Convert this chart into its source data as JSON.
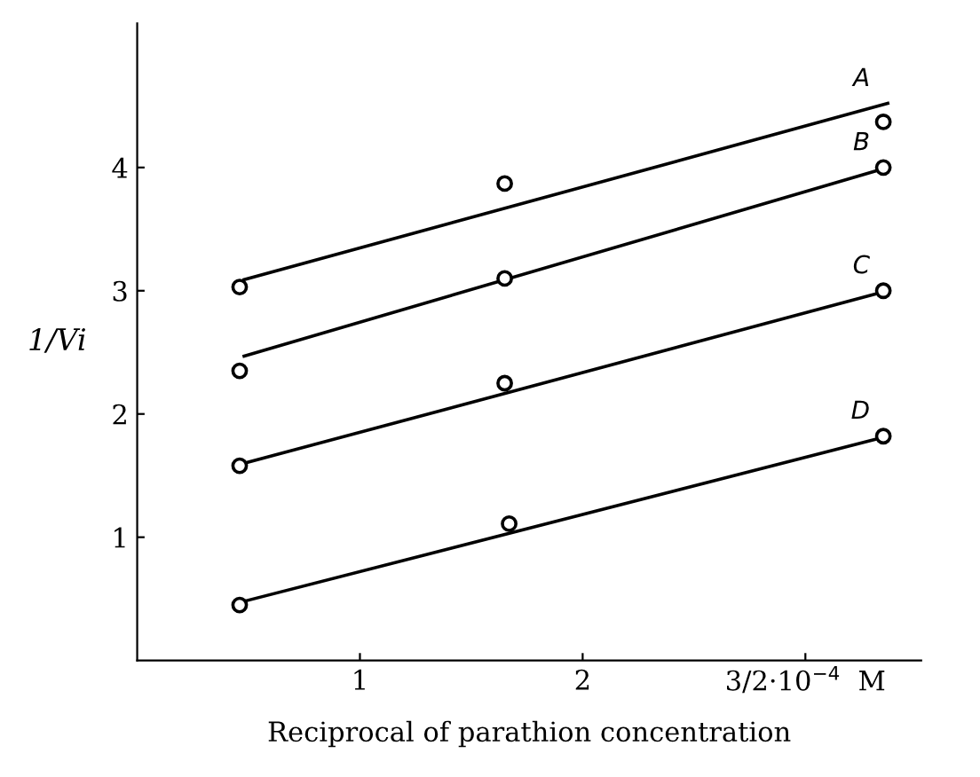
{
  "chart_data": {
    "type": "scatter",
    "xlabel": "Reciprocal of parathion concentration",
    "ylabel": "1/Vi",
    "xlim": [
      0,
      3.52
    ],
    "ylim": [
      0,
      5.17
    ],
    "xticks": [
      1,
      2,
      {
        "value": 3,
        "label": "3/2·10$^{−4}$  M"
      }
    ],
    "yticks": [
      1,
      2,
      3,
      4
    ],
    "grid": false,
    "series": [
      {
        "type": "line",
        "name": "A",
        "color": "#000000",
        "x": [
          0.48,
          3.37
        ],
        "values": [
          3.09,
          4.52
        ]
      },
      {
        "type": "line",
        "name": "B",
        "color": "#000000",
        "x": [
          0.48,
          3.37
        ],
        "values": [
          2.47,
          4.0
        ]
      },
      {
        "type": "line",
        "name": "C",
        "color": "#000000",
        "x": [
          0.48,
          3.37
        ],
        "values": [
          1.6,
          3.0
        ]
      },
      {
        "type": "line",
        "name": "D",
        "color": "#000000",
        "x": [
          0.48,
          3.37
        ],
        "values": [
          0.48,
          1.82
        ]
      },
      {
        "marker": "circle",
        "color": "#000000",
        "x": [
          0.46,
          1.65,
          3.35
        ],
        "values": [
          3.03,
          3.87,
          4.37
        ]
      },
      {
        "marker": "circle",
        "color": "#000000",
        "x": [
          0.46,
          1.65,
          3.35
        ],
        "values": [
          2.35,
          3.1,
          4.0
        ]
      },
      {
        "marker": "circle",
        "color": "#000000",
        "x": [
          0.46,
          1.65,
          3.35
        ],
        "values": [
          1.58,
          2.25,
          3.0
        ]
      },
      {
        "marker": "circle",
        "color": "#000000",
        "x": [
          0.46,
          1.67,
          3.35
        ],
        "values": [
          0.45,
          1.11,
          1.82
        ]
      }
    ]
  }
}
